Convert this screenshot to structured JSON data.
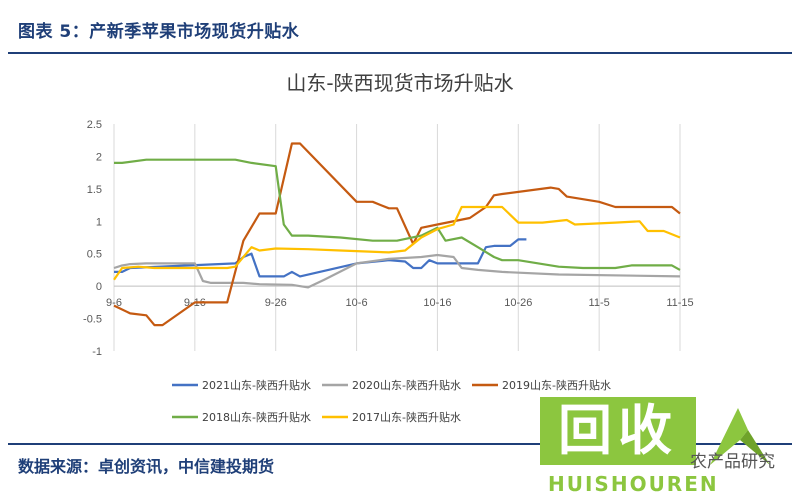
{
  "figure": {
    "title": "图表 5：产新季苹果市场现货升贴水",
    "source": "数据来源：卓创资讯，中信建投期货"
  },
  "watermark": {
    "main": "回收",
    "sub": "HUISHOUREN",
    "tail": "农产品研究"
  },
  "chart_data": {
    "type": "line",
    "title": "山东-陕西现货市场升贴水",
    "xlabel": "",
    "ylabel": "",
    "ylim": [
      -1,
      2.5
    ],
    "yticks": [
      "2.5",
      "2",
      "1.5",
      "1",
      "0.5",
      "0",
      "-0.5",
      "-1"
    ],
    "x_range": [
      0,
      70
    ],
    "xticks": [
      {
        "x": 0,
        "label": "9-6"
      },
      {
        "x": 10,
        "label": "9-16"
      },
      {
        "x": 20,
        "label": "9-26"
      },
      {
        "x": 30,
        "label": "10-6"
      },
      {
        "x": 40,
        "label": "10-16"
      },
      {
        "x": 50,
        "label": "10-26"
      },
      {
        "x": 60,
        "label": "11-5"
      },
      {
        "x": 70,
        "label": "11-15"
      }
    ],
    "grid": "vertical",
    "legend_position": "bottom",
    "series": [
      {
        "name": "2021山东-陕西升贴水",
        "color": "#4472c4",
        "points": [
          [
            0,
            0.22
          ],
          [
            1,
            0.22
          ],
          [
            2,
            0.28
          ],
          [
            15,
            0.35
          ],
          [
            16,
            0.45
          ],
          [
            17,
            0.5
          ],
          [
            18,
            0.15
          ],
          [
            21,
            0.15
          ],
          [
            22,
            0.22
          ],
          [
            23,
            0.15
          ],
          [
            30,
            0.35
          ],
          [
            34,
            0.4
          ],
          [
            36,
            0.38
          ],
          [
            37,
            0.28
          ],
          [
            38,
            0.28
          ],
          [
            39,
            0.4
          ],
          [
            40,
            0.35
          ],
          [
            45,
            0.35
          ],
          [
            46,
            0.6
          ],
          [
            47,
            0.62
          ],
          [
            49,
            0.62
          ],
          [
            50,
            0.72
          ],
          [
            51,
            0.72
          ]
        ]
      },
      {
        "name": "2020山东-陕西升贴水",
        "color": "#a5a5a5",
        "points": [
          [
            0,
            0.28
          ],
          [
            1,
            0.32
          ],
          [
            2,
            0.34
          ],
          [
            4,
            0.35
          ],
          [
            10,
            0.35
          ],
          [
            11,
            0.08
          ],
          [
            12,
            0.05
          ],
          [
            14,
            0.05
          ],
          [
            16,
            0.05
          ],
          [
            18,
            0.03
          ],
          [
            22,
            0.02
          ],
          [
            24,
            -0.02
          ],
          [
            26,
            0.1
          ],
          [
            30,
            0.35
          ],
          [
            34,
            0.42
          ],
          [
            38,
            0.45
          ],
          [
            40,
            0.48
          ],
          [
            42,
            0.45
          ],
          [
            43,
            0.28
          ],
          [
            45,
            0.25
          ],
          [
            48,
            0.22
          ],
          [
            55,
            0.18
          ],
          [
            70,
            0.15
          ]
        ]
      },
      {
        "name": "2019山东-陕西升贴水",
        "color": "#c55a11",
        "points": [
          [
            0,
            -0.3
          ],
          [
            2,
            -0.42
          ],
          [
            4,
            -0.45
          ],
          [
            5,
            -0.6
          ],
          [
            6,
            -0.6
          ],
          [
            10,
            -0.25
          ],
          [
            14,
            -0.25
          ],
          [
            16,
            0.7
          ],
          [
            18,
            1.12
          ],
          [
            20,
            1.12
          ],
          [
            22,
            2.2
          ],
          [
            23,
            2.2
          ],
          [
            30,
            1.3
          ],
          [
            32,
            1.3
          ],
          [
            33,
            1.25
          ],
          [
            34,
            1.2
          ],
          [
            35,
            1.2
          ],
          [
            37,
            0.65
          ],
          [
            38,
            0.9
          ],
          [
            40,
            0.95
          ],
          [
            44,
            1.05
          ],
          [
            46,
            1.22
          ],
          [
            47,
            1.4
          ],
          [
            48,
            1.42
          ],
          [
            54,
            1.52
          ],
          [
            55,
            1.5
          ],
          [
            56,
            1.38
          ],
          [
            60,
            1.3
          ],
          [
            62,
            1.22
          ],
          [
            66,
            1.22
          ],
          [
            69,
            1.22
          ],
          [
            70,
            1.12
          ]
        ]
      },
      {
        "name": "2018山东-陕西升贴水",
        "color": "#70ad47",
        "points": [
          [
            0,
            1.9
          ],
          [
            1,
            1.9
          ],
          [
            4,
            1.95
          ],
          [
            15,
            1.95
          ],
          [
            17,
            1.9
          ],
          [
            20,
            1.85
          ],
          [
            21,
            0.95
          ],
          [
            22,
            0.78
          ],
          [
            24,
            0.78
          ],
          [
            28,
            0.75
          ],
          [
            32,
            0.7
          ],
          [
            35,
            0.7
          ],
          [
            38,
            0.78
          ],
          [
            40,
            0.9
          ],
          [
            41,
            0.7
          ],
          [
            43,
            0.75
          ],
          [
            45,
            0.6
          ],
          [
            47,
            0.45
          ],
          [
            48,
            0.4
          ],
          [
            50,
            0.4
          ],
          [
            55,
            0.3
          ],
          [
            58,
            0.28
          ],
          [
            62,
            0.28
          ],
          [
            64,
            0.32
          ],
          [
            69,
            0.32
          ],
          [
            70,
            0.25
          ]
        ]
      },
      {
        "name": "2017山东-陕西升贴水",
        "color": "#ffc000",
        "points": [
          [
            0,
            0.1
          ],
          [
            1,
            0.28
          ],
          [
            3,
            0.3
          ],
          [
            5,
            0.28
          ],
          [
            10,
            0.28
          ],
          [
            14,
            0.28
          ],
          [
            15,
            0.3
          ],
          [
            17,
            0.6
          ],
          [
            18,
            0.55
          ],
          [
            20,
            0.58
          ],
          [
            24,
            0.57
          ],
          [
            28,
            0.55
          ],
          [
            34,
            0.52
          ],
          [
            36,
            0.55
          ],
          [
            38,
            0.75
          ],
          [
            40,
            0.88
          ],
          [
            42,
            0.95
          ],
          [
            43,
            1.22
          ],
          [
            48,
            1.22
          ],
          [
            50,
            0.98
          ],
          [
            53,
            0.98
          ],
          [
            56,
            1.02
          ],
          [
            57,
            0.95
          ],
          [
            62,
            0.98
          ],
          [
            65,
            1.0
          ],
          [
            66,
            0.85
          ],
          [
            68,
            0.85
          ],
          [
            70,
            0.75
          ]
        ]
      }
    ]
  }
}
